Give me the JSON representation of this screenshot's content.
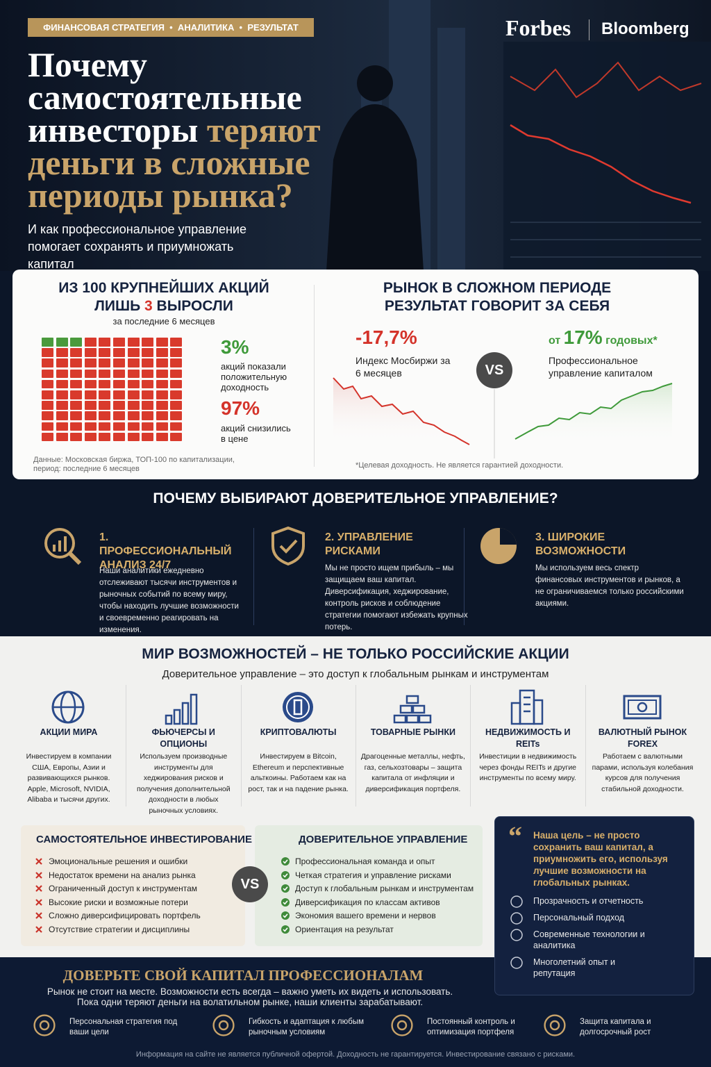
{
  "header": {
    "tags": "ФИНАНСОВАЯ СТРАТЕГИЯ  •  АНАЛИТИКА  •  РЕЗУЛЬТАТ",
    "brand_1": "Forbes",
    "brand_2": "Bloomberg",
    "title_white": "Почему самостоятельные инвесторы",
    "title_gold": "теряют деньги в сложные периоды рынка?",
    "subtitle": "И как профессиональное управление помогает сохранять и приумножать капитал"
  },
  "stocks_panel": {
    "title_1": "ИЗ 100 КРУПНЕЙШИХ АКЦИЙ",
    "title_2a": "ЛИШЬ ",
    "title_2b": "3",
    "title_2c": " ВЫРОСЛИ",
    "period": "за последние 6 месяцев",
    "positive": {
      "value": 3,
      "label": "3%"
    },
    "positive_text": "акций показали положительную доходность",
    "negative": {
      "value": 97,
      "label": "97%"
    },
    "negative_text": "акций снизились в цене",
    "source": "Данные: Московская биржа, ТОП-100 по капитализации, период: последние 6 месяцев"
  },
  "market_panel": {
    "title_1": "РЫНОК В СЛОЖНОМ ПЕРИОДЕ",
    "title_2": "РЕЗУЛЬТАТ ГОВОРИТ ЗА СЕБЯ",
    "index_value": "-17,7%",
    "index_label": "Индекс Мосбиржи за 6 месяцев",
    "vs": "VS",
    "managed_prefix": "от ",
    "managed_value": "17%",
    "managed_suffix": " годовых*",
    "managed_label": "Профессиональное управление капиталом",
    "footnote": "*Целевая доходность. Не является гарантией доходности."
  },
  "reasons": {
    "title": "ПОЧЕМУ ВЫБИРАЮТ ДОВЕРИТЕЛЬНОЕ УПРАВЛЕНИЕ?",
    "items": [
      {
        "title": "1. ПРОФЕССИОНАЛЬНЫЙ АНАЛИЗ 24/7",
        "text": "Наши аналитики ежедневно отслеживают тысячи инструментов и рыночных событий по всему миру, чтобы находить лучшие возможности и своевременно реагировать на изменения."
      },
      {
        "title": "2. УПРАВЛЕНИЕ РИСКАМИ",
        "text": "Мы не просто ищем прибыль – мы защищаем ваш капитал. Диверсификация, хеджирование, контроль рисков и соблюдение стратегии помогают избежать крупных потерь."
      },
      {
        "title": "3. ШИРОКИЕ ВОЗМОЖНОСТИ",
        "text": "Мы используем весь спектр финансовых инструментов и рынков, а не ограничиваемся только российскими акциями."
      }
    ]
  },
  "opportunities": {
    "title": "МИР ВОЗМОЖНОСТЕЙ – НЕ ТОЛЬКО РОССИЙСКИЕ АКЦИИ",
    "subtitle": "Доверительное управление – это доступ к глобальным рынкам и инструментам",
    "items": [
      {
        "title": "АКЦИИ МИРА",
        "text": "Инвестируем в компании США, Европы, Азии и развивающихся рынков. Apple, Microsoft, NVIDIA, Alibaba и тысячи других."
      },
      {
        "title": "ФЬЮЧЕРСЫ И ОПЦИОНЫ",
        "text": "Используем производные инструменты для хеджирования рисков и получения дополнительной доходности в любых рыночных условиях."
      },
      {
        "title": "КРИПТОВАЛЮТЫ",
        "text": "Инвестируем в Bitcoin, Ethereum и перспективные альткоины. Работаем как на рост, так и на падение рынка."
      },
      {
        "title": "ТОВАРНЫЕ РЫНКИ",
        "text": "Драгоценные металлы, нефть, газ, сельхозтовары – защита капитала от инфляции и диверсификация портфеля."
      },
      {
        "title": "НЕДВИЖИМОСТЬ И REITs",
        "text": "Инвестиции в недвижимость через фонды REITs и другие инструменты по всему миру."
      },
      {
        "title": "ВАЛЮТНЫЙ РЫНОК FOREX",
        "text": "Работаем с валютными парами, используя колебания курсов для получения стабильной доходности."
      }
    ]
  },
  "comparison": {
    "self": {
      "title": "САМОСТОЯТЕЛЬНОЕ ИНВЕСТИРОВАНИЕ",
      "items": [
        "Эмоциональные решения и ошибки",
        "Недостаток времени на анализ рынка",
        "Ограниченный доступ к инструментам",
        "Высокие риски и возможные потери",
        "Сложно диверсифицировать портфель",
        "Отсутствие стратегии и дисциплины"
      ]
    },
    "vs": "VS",
    "managed": {
      "title": "ДОВЕРИТЕЛЬНОЕ УПРАВЛЕНИЕ",
      "items": [
        "Профессиональная команда и опыт",
        "Четкая стратегия и управление рисками",
        "Доступ к глобальным рынкам и инструментам",
        "Диверсификация по классам активов",
        "Экономия вашего времени и нервов",
        "Ориентация на результат"
      ]
    },
    "quote_mark": "“",
    "quote": "Наша цель – не просто сохранить ваш капитал, а приумножить его, используя лучшие возможности на глобальных рынках.",
    "benefits": [
      "Прозрачность и отчетность",
      "Персональный подход",
      "Современные технологии и аналитика",
      "Многолетний опыт и репутация"
    ]
  },
  "footer": {
    "title": "ДОВЕРЬТЕ СВОЙ КАПИТАЛ ПРОФЕССИОНАЛАМ",
    "text_1": "Рынок не стоит на месте. Возможности есть всегда – важно уметь их видеть и использовать.",
    "text_2": "Пока одни теряют деньги на волатильном рынке, наши клиенты зарабатывают.",
    "features": [
      "Персональная стратегия под ваши цели",
      "Гибкость и адаптация к любым рыночным условиям",
      "Постоянный контроль и оптимизация портфеля",
      "Защита капитала и долгосрочный рост"
    ],
    "disclaimer": "Информация на сайте не является публичной офертой. Доходность не гарантируется. Инвестирование связано с рисками."
  }
}
